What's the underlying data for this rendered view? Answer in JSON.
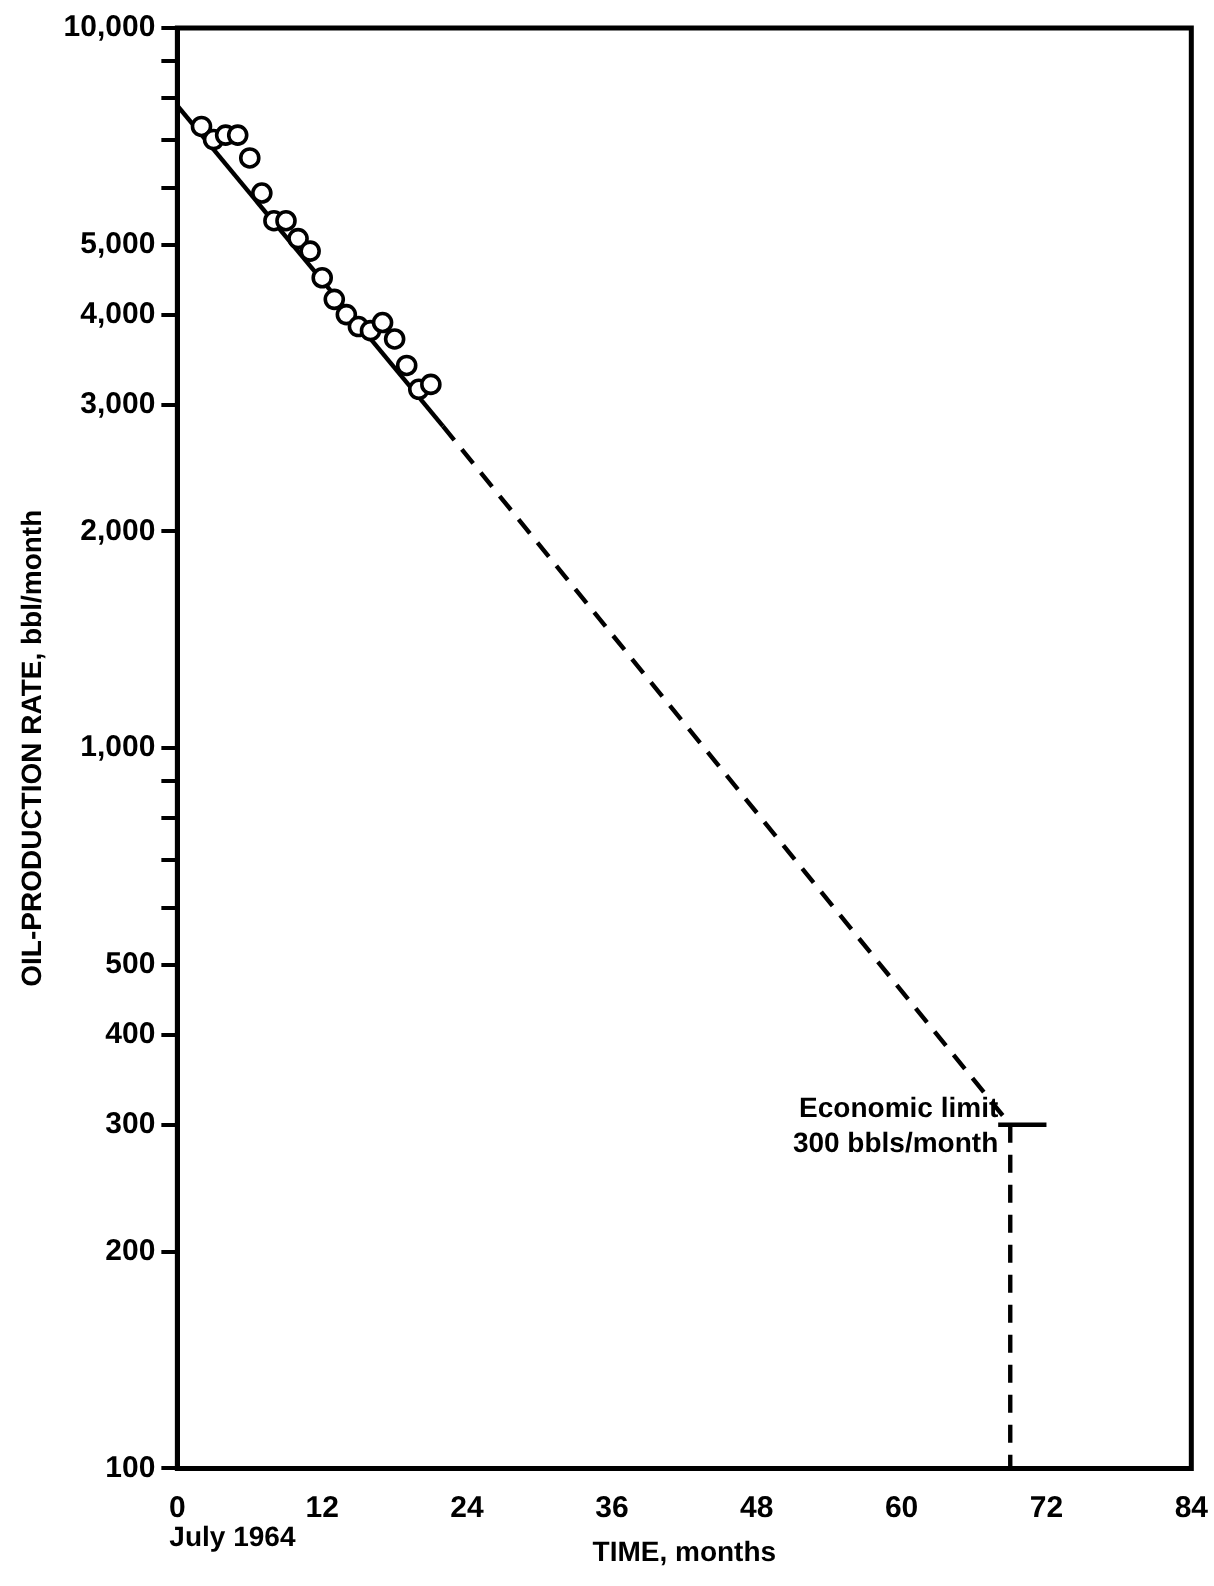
{
  "chart_data": {
    "type": "scatter",
    "xlabel": "TIME, months",
    "ylabel": "OIL-PRODUCTION RATE, bbl/month",
    "log": "y",
    "grid": false,
    "legend": false,
    "xlim": [
      0,
      84
    ],
    "xticks": [
      0,
      12,
      24,
      36,
      48,
      60,
      72,
      84
    ],
    "ylim": [
      100,
      10000
    ],
    "yticks": [
      100,
      200,
      300,
      400,
      500,
      {
        "value": 600,
        "label": null
      },
      {
        "value": 700,
        "label": null
      },
      {
        "value": 800,
        "label": null
      },
      {
        "value": 900,
        "label": null
      },
      {
        "value": 1000,
        "label": "1,000"
      },
      {
        "value": 2000,
        "label": "2,000"
      },
      {
        "value": 3000,
        "label": "3,000"
      },
      {
        "value": 4000,
        "label": "4,000"
      },
      {
        "value": 5000,
        "label": "5,000"
      },
      {
        "value": 6000,
        "label": null
      },
      {
        "value": 7000,
        "label": null
      },
      {
        "value": 8000,
        "label": null
      },
      {
        "value": 9000,
        "label": null
      },
      {
        "value": 10000,
        "label": "10,000"
      }
    ],
    "series": [
      {
        "type": "scatter",
        "color": "#000000",
        "marker": "circle",
        "x": [
          2,
          3,
          4,
          5,
          6,
          7,
          8,
          9,
          10,
          11,
          12,
          13,
          14,
          15,
          16,
          17,
          18,
          19,
          20,
          21
        ],
        "values": [
          7300,
          7000,
          7100,
          7100,
          6600,
          5900,
          5400,
          5400,
          5100,
          4900,
          4500,
          4200,
          4000,
          3850,
          3800,
          3900,
          3700,
          3400,
          3150,
          3200
        ]
      },
      {
        "type": "line",
        "color": "#000000",
        "marker": "none",
        "line_style": "solid",
        "x": [
          0,
          22
        ],
        "values": [
          7800,
          2800
        ]
      },
      {
        "type": "line",
        "color": "#000000",
        "marker": "none",
        "line_style": "dashed",
        "x": [
          22,
          69
        ],
        "values": [
          2800,
          300
        ]
      },
      {
        "type": "line",
        "color": "#000000",
        "marker": "none",
        "line_style": "dashed",
        "x": [
          69,
          69
        ],
        "values": [
          300,
          100
        ]
      },
      {
        "type": "line",
        "color": "#000000",
        "marker": "none",
        "line_style": "solid",
        "x": [
          68,
          72
        ],
        "values": [
          300,
          300
        ]
      }
    ],
    "annotations": [
      "July 1964",
      {
        "text": "Economic limit\n300 bbls/month",
        "x": 69,
        "y": 300
      }
    ]
  }
}
